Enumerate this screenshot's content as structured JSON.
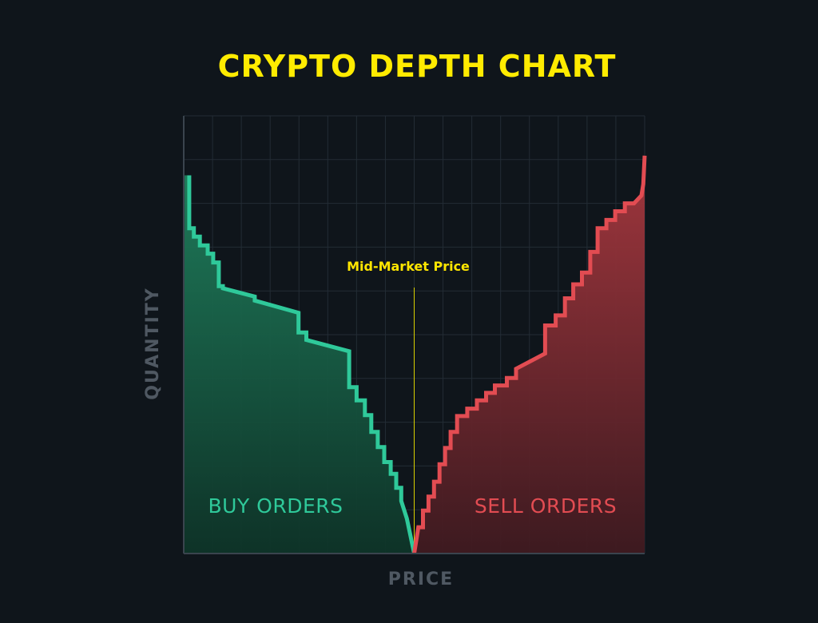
{
  "chart_data": {
    "type": "area",
    "title": "CRYPTO DEPTH CHART",
    "xlabel": "PRICE",
    "ylabel": "QUANTITY",
    "annotation": "Mid-Market Price",
    "xlim": [
      0,
      100
    ],
    "ylim": [
      0,
      100
    ],
    "mid_price": 50,
    "grid": true,
    "series": [
      {
        "name": "BUY ORDERS",
        "color": "#2fc99a",
        "points": [
          [
            1.2,
            86.4
          ],
          [
            1.2,
            74.3
          ],
          [
            2.2,
            74.3
          ],
          [
            2.2,
            72.4
          ],
          [
            3.5,
            72.4
          ],
          [
            3.5,
            70.4
          ],
          [
            5.2,
            70.4
          ],
          [
            5.2,
            68.5
          ],
          [
            6.4,
            68.5
          ],
          [
            6.4,
            66.5
          ],
          [
            7.6,
            66.5
          ],
          [
            7.6,
            61.1
          ],
          [
            8.5,
            61.1
          ],
          [
            8.5,
            60.6
          ],
          [
            15.4,
            58.7
          ],
          [
            15.4,
            57.8
          ],
          [
            24.9,
            55.0
          ],
          [
            24.9,
            50.5
          ],
          [
            26.6,
            50.5
          ],
          [
            26.6,
            48.8
          ],
          [
            35.9,
            46.2
          ],
          [
            35.9,
            38.0
          ],
          [
            37.5,
            38.0
          ],
          [
            37.5,
            35.0
          ],
          [
            39.3,
            35.0
          ],
          [
            39.3,
            31.6
          ],
          [
            40.7,
            31.6
          ],
          [
            40.7,
            27.8
          ],
          [
            42.1,
            27.8
          ],
          [
            42.1,
            24.3
          ],
          [
            43.5,
            24.3
          ],
          [
            43.5,
            20.9
          ],
          [
            44.9,
            20.9
          ],
          [
            44.9,
            18.2
          ],
          [
            46.1,
            18.2
          ],
          [
            46.1,
            15.0
          ],
          [
            47.2,
            15.0
          ],
          [
            47.2,
            12.0
          ],
          [
            48.4,
            8.0
          ],
          [
            50.0,
            0
          ]
        ]
      },
      {
        "name": "SELL ORDERS",
        "color": "#e24c52",
        "points": [
          [
            50.0,
            0
          ],
          [
            50.9,
            6.0
          ],
          [
            51.9,
            6.0
          ],
          [
            51.9,
            9.8
          ],
          [
            53.1,
            9.8
          ],
          [
            53.1,
            13.0
          ],
          [
            54.3,
            13.0
          ],
          [
            54.3,
            16.4
          ],
          [
            55.5,
            16.4
          ],
          [
            55.5,
            20.4
          ],
          [
            56.7,
            20.4
          ],
          [
            56.7,
            24.1
          ],
          [
            57.9,
            24.1
          ],
          [
            57.9,
            27.8
          ],
          [
            59.3,
            27.8
          ],
          [
            59.3,
            31.4
          ],
          [
            61.5,
            31.4
          ],
          [
            61.5,
            33.1
          ],
          [
            63.6,
            33.1
          ],
          [
            63.6,
            35.0
          ],
          [
            65.6,
            35.0
          ],
          [
            65.6,
            36.7
          ],
          [
            67.5,
            36.7
          ],
          [
            67.5,
            38.4
          ],
          [
            70.1,
            38.4
          ],
          [
            70.1,
            40.1
          ],
          [
            72.1,
            40.1
          ],
          [
            72.1,
            42.2
          ],
          [
            78.4,
            45.7
          ],
          [
            78.4,
            52.1
          ],
          [
            80.7,
            52.1
          ],
          [
            80.7,
            54.4
          ],
          [
            82.7,
            54.4
          ],
          [
            82.7,
            58.3
          ],
          [
            84.5,
            58.3
          ],
          [
            84.5,
            61.5
          ],
          [
            86.4,
            61.5
          ],
          [
            86.4,
            64.2
          ],
          [
            88.2,
            64.2
          ],
          [
            88.2,
            68.9
          ],
          [
            89.8,
            68.9
          ],
          [
            89.8,
            74.3
          ],
          [
            91.7,
            74.3
          ],
          [
            91.7,
            76.2
          ],
          [
            93.6,
            76.2
          ],
          [
            93.6,
            78.2
          ],
          [
            95.7,
            78.2
          ],
          [
            95.7,
            80.0
          ],
          [
            97.7,
            80.0
          ],
          [
            99.3,
            81.8
          ],
          [
            99.7,
            84.4
          ],
          [
            100.0,
            90.9
          ]
        ]
      }
    ]
  }
}
